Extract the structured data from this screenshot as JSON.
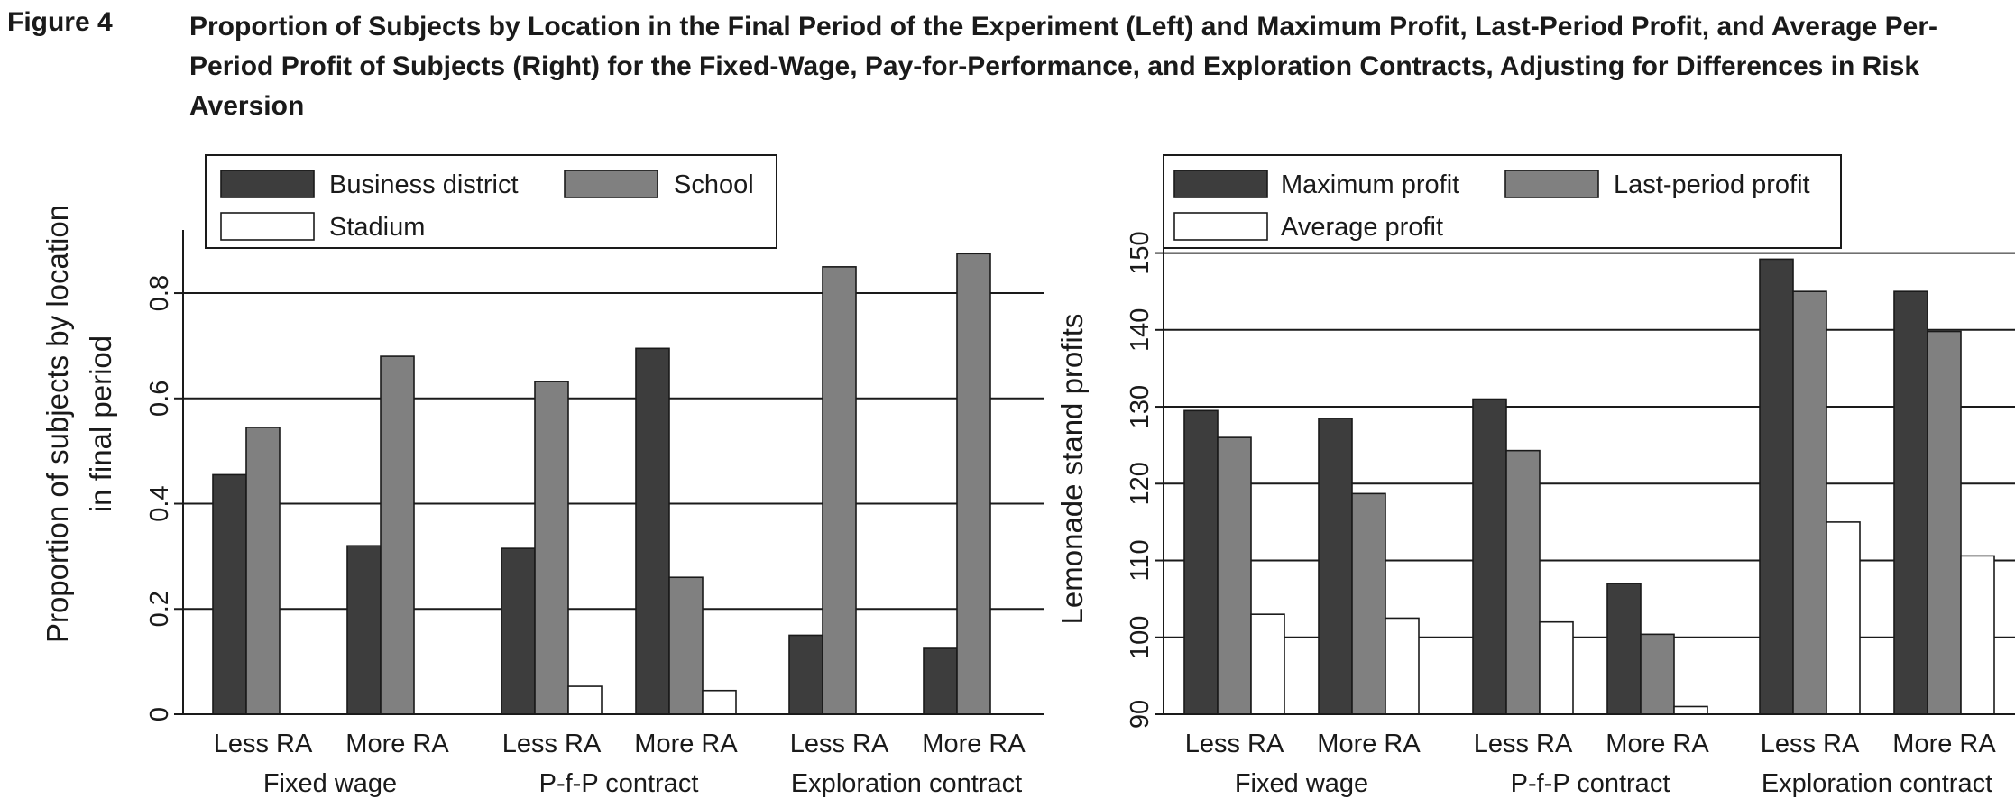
{
  "figure": {
    "label": "Figure 4",
    "title": "Proportion of Subjects by Location in the Final Period of the Experiment (Left) and Maximum Profit, Last-Period Profit, and Average Per-Period Profit of Subjects (Right) for the Fixed-Wage, Pay-for-Performance, and Exploration Contracts, Adjusting for Differences in Risk Aversion"
  },
  "colors": {
    "series1": "#3d3d3d",
    "series2": "#808080",
    "series3": "#ffffff",
    "outline": "#1a1a1a"
  },
  "chart_data": [
    {
      "type": "bar",
      "title": "",
      "ylabel": [
        "Proportion of subjects by location",
        "in final period"
      ],
      "ylim": [
        0,
        0.92
      ],
      "yticks": [
        0,
        0.2,
        0.4,
        0.6,
        0.8
      ],
      "ytick_labels": [
        "0",
        "0.2",
        "0.4",
        "0.6",
        "0.8"
      ],
      "grid": true,
      "legend_position": "top-left",
      "groups": [
        "Fixed wage",
        "P-f-P contract",
        "Exploration contract"
      ],
      "categories": [
        "Less RA",
        "More RA",
        "Less RA",
        "More RA",
        "Less RA",
        "More RA"
      ],
      "series": [
        {
          "name": "Business district",
          "values": [
            0.455,
            0.32,
            0.315,
            0.695,
            0.15,
            0.125
          ]
        },
        {
          "name": "School",
          "values": [
            0.545,
            0.68,
            0.632,
            0.26,
            0.85,
            0.875
          ]
        },
        {
          "name": "Stadium",
          "values": [
            0,
            0,
            0.053,
            0.045,
            0,
            0
          ]
        }
      ]
    },
    {
      "type": "bar",
      "title": "",
      "ylabel": [
        "Lemonade stand profits"
      ],
      "ylim": [
        90,
        153
      ],
      "yticks": [
        90,
        100,
        110,
        120,
        130,
        140,
        150
      ],
      "ytick_labels": [
        "90",
        "100",
        "110",
        "120",
        "130",
        "140",
        "150"
      ],
      "grid": true,
      "legend_position": "top-left",
      "groups": [
        "Fixed wage",
        "P-f-P contract",
        "Exploration contract"
      ],
      "categories": [
        "Less RA",
        "More RA",
        "Less RA",
        "More RA",
        "Less RA",
        "More RA"
      ],
      "series": [
        {
          "name": "Maximum profit",
          "values": [
            129.5,
            128.5,
            131,
            107,
            149.2,
            145
          ]
        },
        {
          "name": "Last-period profit",
          "values": [
            126,
            118.7,
            124.3,
            100.4,
            145,
            139.8
          ]
        },
        {
          "name": "Average profit",
          "values": [
            103,
            102.5,
            102,
            91,
            115,
            110.6
          ]
        }
      ]
    }
  ]
}
